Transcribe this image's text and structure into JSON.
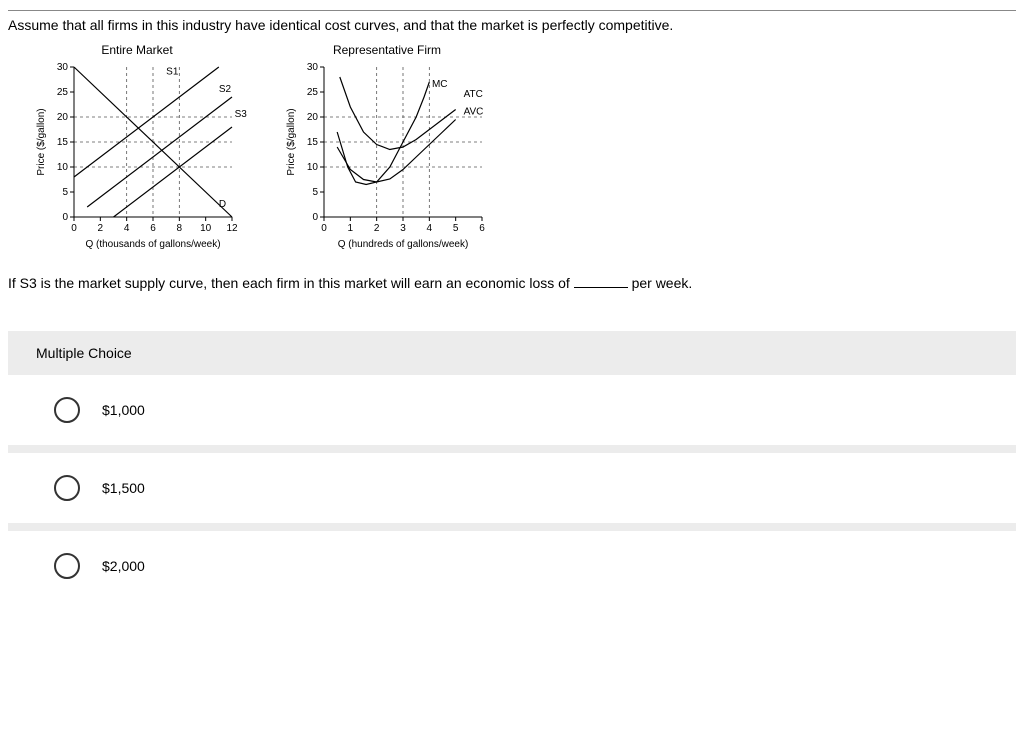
{
  "prompt": "Assume that all firms in this industry have identical cost curves, and that the market is perfectly competitive.",
  "question_prefix": "If S3 is the market supply curve, then each firm in this market will earn an economic loss of ",
  "question_suffix": " per week.",
  "mc_heading": "Multiple Choice",
  "options": [
    "$1,000",
    "$1,500",
    "$2,000"
  ],
  "market_chart": {
    "title": "Entire Market",
    "ylabel": "Price ($/gallon)",
    "xlabel": "Q (thousands of gallons/week)",
    "xlim": [
      0,
      12
    ],
    "ylim": [
      0,
      30
    ],
    "xticks": [
      0,
      2,
      4,
      6,
      8,
      10,
      12
    ],
    "yticks": [
      0,
      5,
      10,
      15,
      20,
      25,
      30
    ],
    "hguides": [
      10,
      15,
      20
    ],
    "vguides": [
      4,
      6,
      8
    ],
    "curves": {
      "S1": {
        "label": "S1",
        "pts": [
          [
            0,
            8
          ],
          [
            11,
            30
          ]
        ]
      },
      "S2": {
        "label": "S2",
        "pts": [
          [
            1,
            2
          ],
          [
            12,
            24
          ]
        ]
      },
      "S3": {
        "label": "S3",
        "pts": [
          [
            3,
            0
          ],
          [
            12,
            18
          ]
        ]
      },
      "D": {
        "label": "D",
        "pts": [
          [
            0,
            30
          ],
          [
            12,
            0
          ]
        ]
      }
    },
    "label_pos": {
      "S1": [
        7,
        28.5
      ],
      "S2": [
        11,
        25
      ],
      "S3": [
        12.2,
        20
      ],
      "D": [
        11,
        2
      ]
    }
  },
  "firm_chart": {
    "title": "Representative Firm",
    "ylabel": "Price ($/gallon)",
    "xlabel": "Q (hundreds of gallons/week)",
    "xlim": [
      0,
      6
    ],
    "ylim": [
      0,
      30
    ],
    "xticks": [
      0,
      1,
      2,
      3,
      4,
      5,
      6
    ],
    "yticks": [
      0,
      5,
      10,
      15,
      20,
      25,
      30
    ],
    "hguides": [
      10,
      15,
      20
    ],
    "vguides": [
      2,
      3,
      4
    ],
    "curves": {
      "MC": {
        "label": "MC",
        "pts": [
          [
            0.5,
            17
          ],
          [
            0.9,
            10
          ],
          [
            1.2,
            7
          ],
          [
            1.6,
            6.5
          ],
          [
            2,
            7
          ],
          [
            2.5,
            10
          ],
          [
            3,
            15
          ],
          [
            3.5,
            20
          ],
          [
            3.8,
            24
          ],
          [
            4,
            27
          ]
        ]
      },
      "ATC": {
        "label": "ATC",
        "pts": [
          [
            0.6,
            28
          ],
          [
            1,
            22
          ],
          [
            1.5,
            17
          ],
          [
            2,
            14.5
          ],
          [
            2.5,
            13.5
          ],
          [
            3,
            14
          ],
          [
            3.5,
            15.5
          ],
          [
            4,
            17.5
          ],
          [
            4.5,
            19.5
          ],
          [
            5,
            21.5
          ]
        ]
      },
      "AVC": {
        "label": "AVC",
        "pts": [
          [
            0.5,
            14
          ],
          [
            1,
            9.5
          ],
          [
            1.5,
            7.5
          ],
          [
            2,
            7
          ],
          [
            2.5,
            7.6
          ],
          [
            3,
            9.5
          ],
          [
            3.5,
            12
          ],
          [
            4,
            14.5
          ],
          [
            4.5,
            17
          ],
          [
            5,
            19.5
          ]
        ]
      }
    },
    "label_pos": {
      "MC": [
        4.1,
        26
      ],
      "ATC": [
        5.3,
        24
      ],
      "AVC": [
        5.3,
        20.5
      ]
    }
  },
  "axis_color": "#000",
  "curve_color": "#000",
  "guide_color": "#555",
  "tick_fontsize": 10,
  "label_fontsize": 11
}
